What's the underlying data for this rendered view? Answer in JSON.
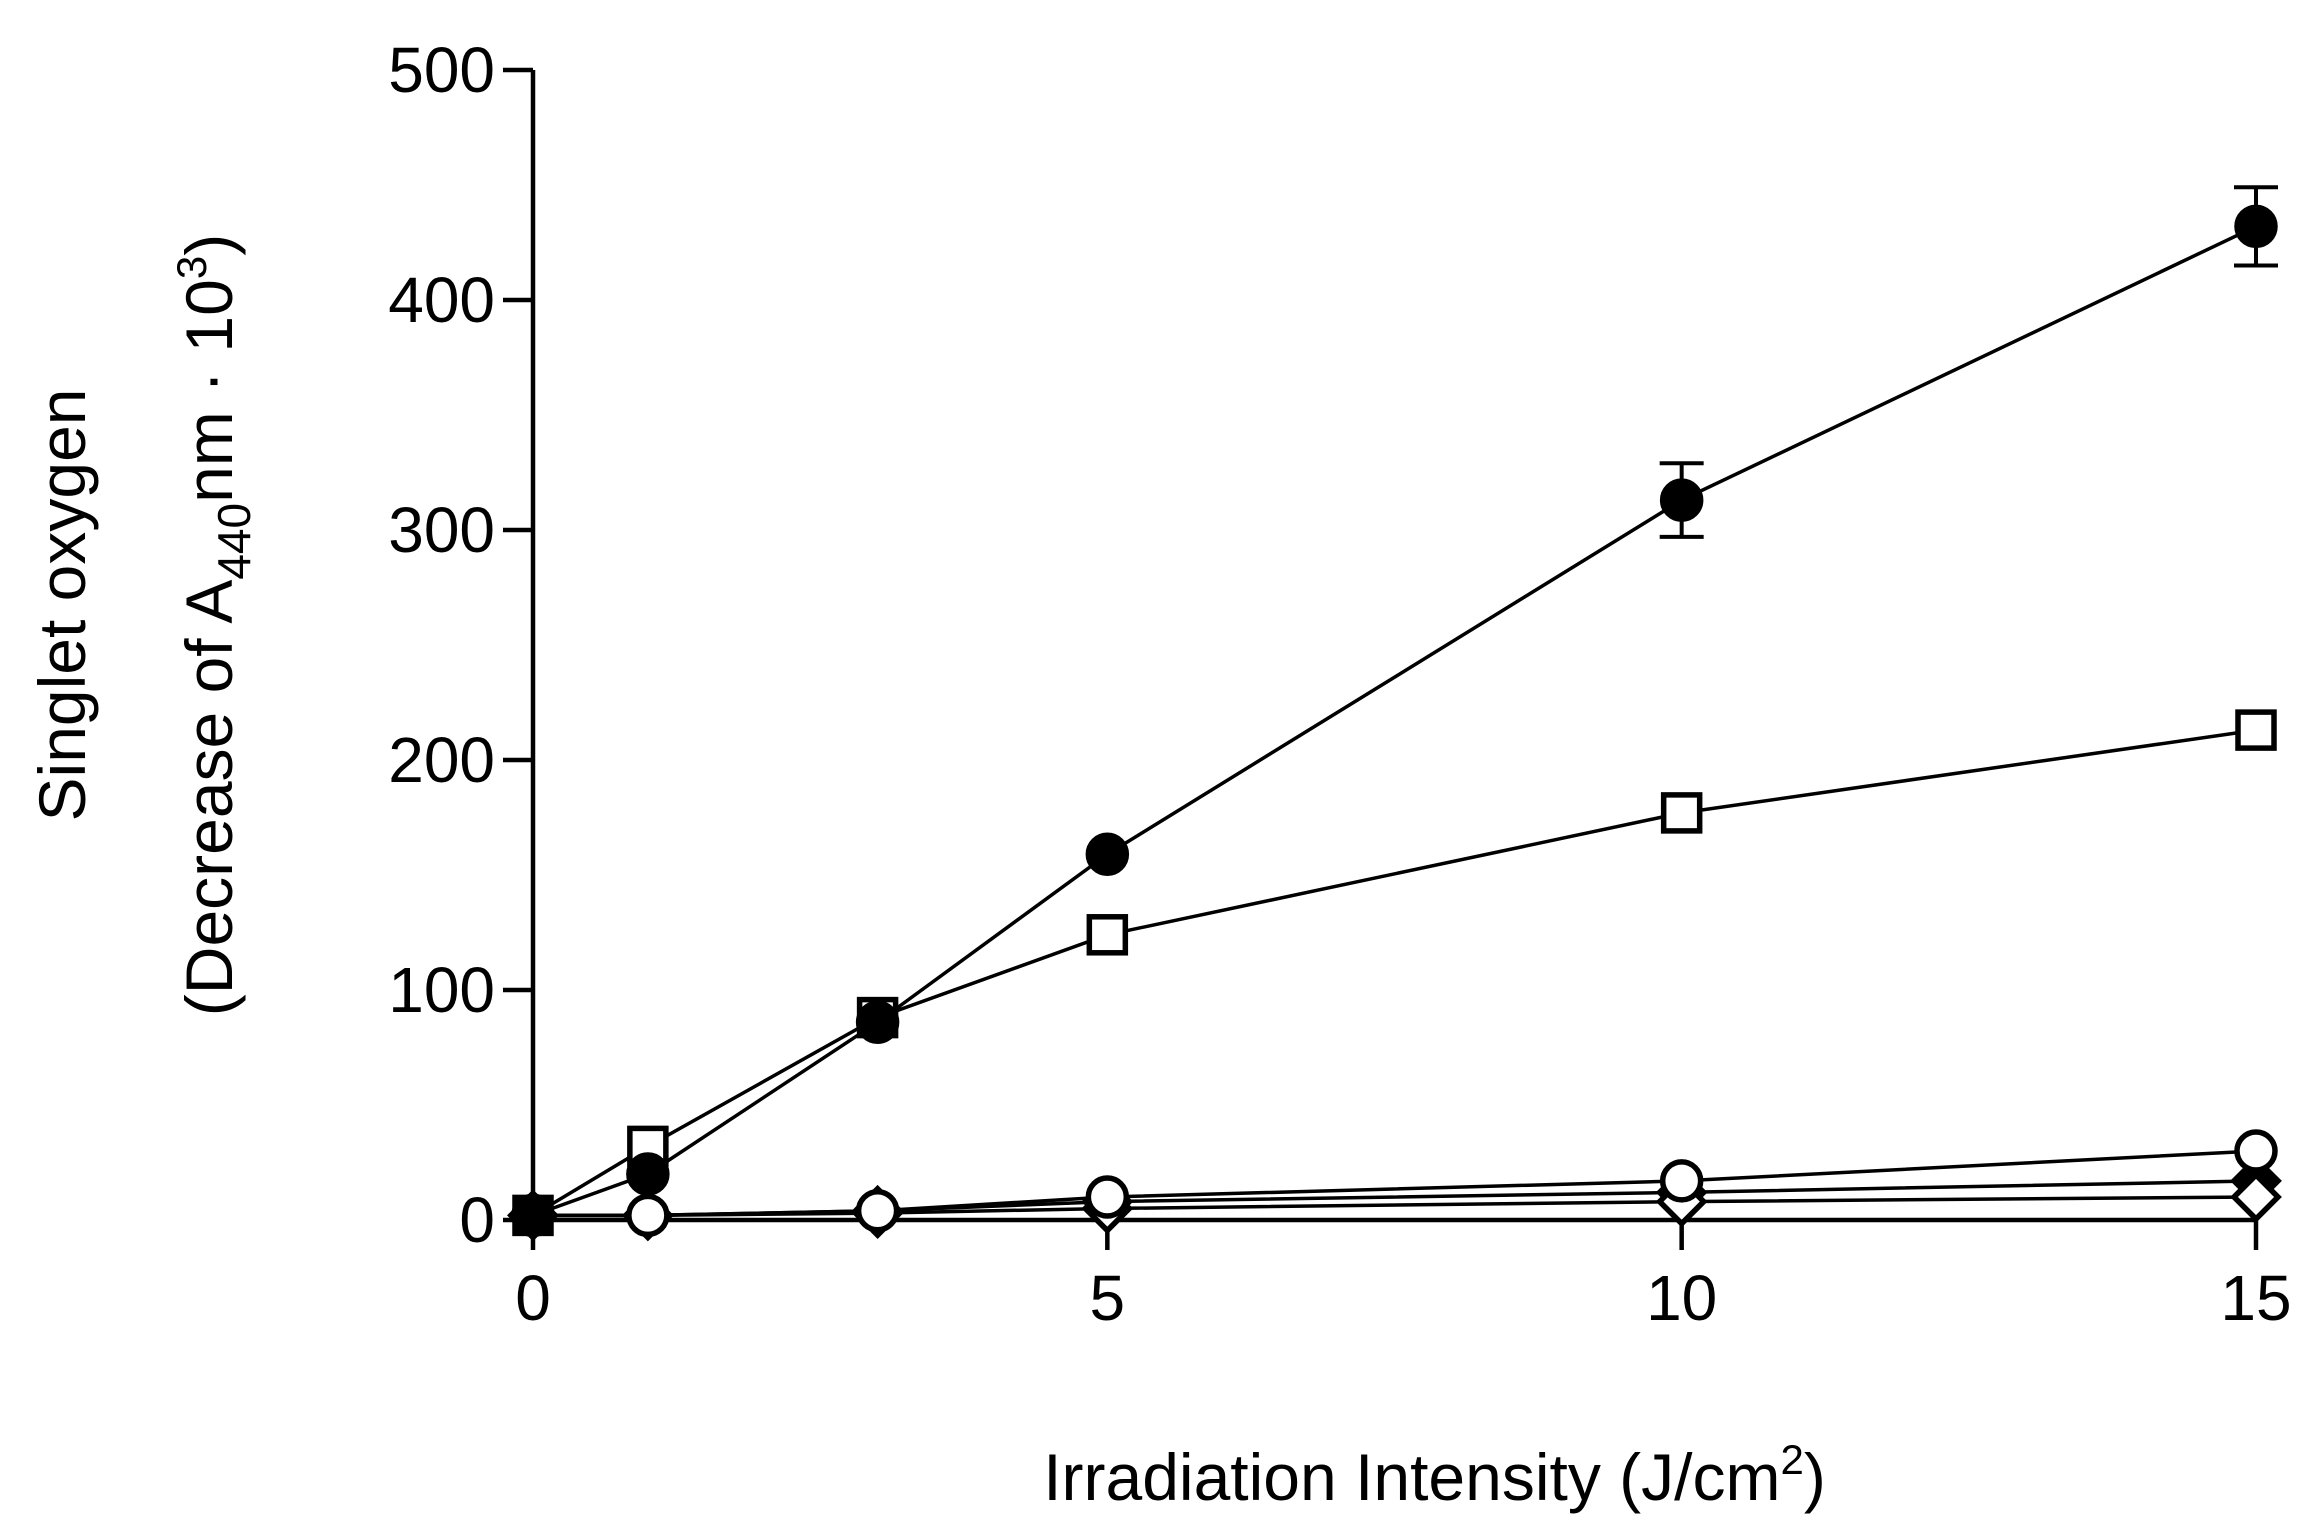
{
  "chart_data": {
    "type": "line",
    "title": "",
    "xlabel": "Irradiation Intensity (J/cm2)",
    "xlabel_parts": {
      "main": "Irradiation Intensity (J/cm",
      "sup": "2",
      "end": ")"
    },
    "ylabel": "Singlet oxygen (Decrease of A440nm · 103)",
    "ylabel_parts": {
      "line1": "Singlet  oxygen",
      "line2_a": "(Decrease of A",
      "line2_sub": "440",
      "line2_b": "nm · 10",
      "line2_sup": "3",
      "line2_c": ")"
    },
    "xlim": [
      0,
      15
    ],
    "ylim": [
      0,
      500
    ],
    "xticks": [
      0,
      5,
      10,
      15
    ],
    "xtick_labels": [
      "0",
      "5",
      "10",
      "15"
    ],
    "yticks": [
      0,
      100,
      200,
      300,
      400,
      500
    ],
    "ytick_labels": [
      "0",
      "100",
      "200",
      "300",
      "400",
      "500"
    ],
    "legend": "none",
    "grid": false,
    "series": [
      {
        "name": "filled circle",
        "marker": "circle",
        "fill": "#000000",
        "x": [
          0,
          1,
          3,
          5,
          10,
          15
        ],
        "y": [
          2,
          20,
          86,
          159,
          313,
          432
        ],
        "err": [
          0,
          0,
          0,
          0,
          16,
          17
        ]
      },
      {
        "name": "open square",
        "marker": "square",
        "fill": "#ffffff",
        "x": [
          0,
          1,
          3,
          5,
          10,
          15
        ],
        "y": [
          2,
          32,
          88,
          124,
          177,
          213
        ],
        "err": [
          0,
          0,
          0,
          0,
          0,
          0
        ]
      },
      {
        "name": "filled diamond",
        "marker": "diamond",
        "fill": "#000000",
        "x": [
          0,
          1,
          3,
          5,
          10,
          15
        ],
        "y": [
          2,
          2,
          4,
          8,
          12,
          17
        ],
        "err": [
          0,
          0,
          0,
          0,
          0,
          0
        ]
      },
      {
        "name": "open diamond",
        "marker": "diamond",
        "fill": "#ffffff",
        "x": [
          0,
          1,
          3,
          5,
          10,
          15
        ],
        "y": [
          2,
          2,
          3,
          5,
          8,
          10
        ],
        "err": [
          0,
          0,
          0,
          0,
          0,
          0
        ]
      },
      {
        "name": "open circle",
        "marker": "circle",
        "fill": "#ffffff",
        "x": [
          0,
          1,
          3,
          5,
          10,
          15
        ],
        "y": [
          2,
          2,
          4,
          10,
          17,
          30
        ],
        "err": [
          0,
          0,
          0,
          0,
          0,
          0
        ]
      }
    ]
  }
}
